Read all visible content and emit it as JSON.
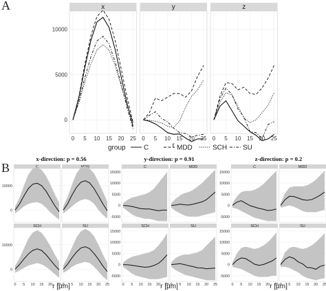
{
  "panel_a_label": "A",
  "panel_b_label": "B",
  "chart_data": [
    {
      "type": "line",
      "facets": [
        "x",
        "y",
        "z"
      ],
      "xlabel": "r",
      "ylabel": "",
      "x_ticks": [
        0,
        5,
        10,
        15,
        20,
        25
      ],
      "y_ticks": [
        0,
        5000,
        10000
      ],
      "xlim": [
        0,
        25
      ],
      "ylim": [
        -1500,
        12000
      ],
      "legend_title": "group",
      "legend_position": "bottom",
      "grid": true,
      "series_names": [
        "C",
        "MDD",
        "SCH",
        "SU"
      ],
      "x": [
        0,
        2.5,
        5,
        7.5,
        10,
        12.5,
        15,
        17.5,
        20,
        22.5,
        25
      ],
      "panels": {
        "x": {
          "C": [
            0,
            2500,
            5800,
            8800,
            10800,
            11300,
            10200,
            7800,
            4800,
            1800,
            -700
          ],
          "MDD": [
            0,
            2600,
            6200,
            9300,
            11400,
            12100,
            11100,
            8800,
            5700,
            2500,
            -300
          ],
          "SCH": [
            0,
            1900,
            4200,
            6200,
            7700,
            8300,
            7700,
            6000,
            3800,
            1600,
            -300
          ],
          "SU": [
            0,
            2100,
            4700,
            7000,
            8700,
            9200,
            8400,
            6400,
            4000,
            1300,
            -1000
          ]
        },
        "y": {
          "C": [
            0,
            -150,
            -450,
            -900,
            -1400,
            -1600,
            -1550,
            -2000,
            -2400,
            -2100,
            -2100
          ],
          "MDD": [
            0,
            800,
            2400,
            2100,
            2500,
            2900,
            2900,
            2500,
            3200,
            4800,
            6000
          ],
          "SCH": [
            0,
            -50,
            -150,
            -350,
            -700,
            -850,
            -150,
            1400,
            2600,
            3300,
            4400
          ],
          "SU": [
            0,
            500,
            900,
            150,
            -200,
            -900,
            -1400,
            -1500,
            -1900,
            -1700,
            -1600
          ]
        },
        "z": {
          "C": [
            0,
            1500,
            2100,
            1000,
            -100,
            -700,
            -1300,
            -1700,
            -2300,
            -2100,
            -1600
          ],
          "MDD": [
            0,
            2600,
            4100,
            4000,
            3300,
            3600,
            2900,
            2800,
            3500,
            4600,
            6000
          ],
          "SCH": [
            0,
            1900,
            3000,
            2700,
            1500,
            200,
            -300,
            0,
            800,
            1600,
            3000
          ],
          "SU": [
            0,
            2300,
            3500,
            2800,
            1200,
            300,
            -1300,
            -1400,
            -2100,
            -500,
            -200
          ]
        }
      }
    },
    {
      "type": "area",
      "xlabel": "r [μm]",
      "x_ticks": [
        0,
        5,
        10,
        15,
        20,
        25
      ],
      "xlim": [
        0,
        25
      ],
      "x": [
        0,
        2.5,
        5,
        7.5,
        10,
        12.5,
        15,
        17.5,
        20,
        22.5,
        25
      ],
      "groups_order": [
        "C",
        "MDD",
        "SCH",
        "SU"
      ],
      "directions": [
        {
          "title": "x-direction: p = 0.56",
          "y_ticks": [
            0,
            10000
          ],
          "ylim": [
            -5000,
            17000
          ],
          "groups": {
            "C": {
              "mean": [
                0,
                2500,
                5800,
                8800,
                10600,
                11000,
                10000,
                7800,
                4800,
                1800,
                -700
              ],
              "low": [
                -1500,
                0,
                1500,
                2500,
                3000,
                3200,
                2500,
                1000,
                -1000,
                -2500,
                -4000
              ],
              "high": [
                1500,
                5000,
                10000,
                14500,
                17000,
                17500,
                16500,
                14000,
                10500,
                6500,
                3000
              ]
            },
            "MDD": {
              "mean": [
                0,
                2600,
                6200,
                9300,
                11400,
                12000,
                11100,
                8800,
                5700,
                2500,
                -300
              ],
              "low": [
                -1500,
                0,
                1500,
                3000,
                4000,
                4500,
                4000,
                2500,
                0,
                -2000,
                -3500
              ],
              "high": [
                1500,
                5500,
                10500,
                15000,
                17500,
                18000,
                17000,
                15000,
                11500,
                7500,
                3500
              ]
            },
            "SCH": {
              "mean": [
                0,
                1900,
                4200,
                6200,
                7700,
                8300,
                7700,
                6000,
                3800,
                1600,
                -300
              ],
              "low": [
                -1500,
                -500,
                500,
                1500,
                2000,
                2500,
                2000,
                1000,
                -500,
                -2000,
                -3500
              ],
              "high": [
                1500,
                4500,
                8500,
                12500,
                15000,
                16000,
                15000,
                12500,
                9500,
                6000,
                3000
              ]
            },
            "SU": {
              "mean": [
                0,
                2100,
                4700,
                7000,
                8700,
                9200,
                8400,
                6400,
                4000,
                1300,
                -1000
              ],
              "low": [
                -1500,
                -500,
                1000,
                2000,
                2500,
                3000,
                2500,
                1000,
                -1000,
                -3000,
                -4500
              ],
              "high": [
                1500,
                5000,
                9000,
                13000,
                15500,
                16500,
                15500,
                13500,
                10000,
                6000,
                2500
              ]
            }
          }
        },
        {
          "title": "y-direction: p = 0.91",
          "y_ticks": [
            -5000,
            0,
            5000,
            10000,
            15000
          ],
          "ylim": [
            -7500,
            16500
          ],
          "groups": {
            "C": {
              "mean": [
                0,
                -150,
                -450,
                -900,
                -1400,
                -1600,
                -1550,
                -2000,
                -2400,
                -2100,
                -2100
              ],
              "low": [
                -1000,
                -2500,
                -4000,
                -5000,
                -5500,
                -6000,
                -6000,
                -6500,
                -7000,
                -7000,
                -7000
              ],
              "high": [
                1000,
                2500,
                3500,
                4000,
                4500,
                5000,
                6000,
                7500,
                10000,
                12500,
                15000
              ]
            },
            "MDD": {
              "mean": [
                0,
                200,
                600,
                300,
                200,
                600,
                1100,
                1600,
                2600,
                4300,
                6000
              ],
              "low": [
                -1000,
                -2500,
                -3500,
                -4500,
                -5000,
                -5000,
                -5000,
                -4500,
                -4000,
                -3500,
                -3000
              ],
              "high": [
                1000,
                3000,
                4500,
                5500,
                6000,
                7000,
                8500,
                10000,
                12000,
                14000,
                16000
              ]
            },
            "SCH": {
              "mean": [
                0,
                -100,
                -300,
                -600,
                -900,
                -1200,
                -1000,
                -400,
                500,
                2200,
                4400
              ],
              "low": [
                -1000,
                -2500,
                -4000,
                -5000,
                -5500,
                -6000,
                -6500,
                -6500,
                -6500,
                -6000,
                -5500
              ],
              "high": [
                1000,
                2500,
                3500,
                4000,
                4500,
                5000,
                5500,
                6500,
                8500,
                11000,
                14000
              ]
            },
            "SU": {
              "mean": [
                0,
                200,
                400,
                0,
                -500,
                -900,
                -1400,
                -1500,
                -1900,
                -1700,
                -1600
              ],
              "low": [
                -1000,
                -2500,
                -3500,
                -4500,
                -5000,
                -5500,
                -6000,
                -6500,
                -7000,
                -7000,
                -7000
              ],
              "high": [
                1000,
                3000,
                4000,
                4500,
                4500,
                5000,
                5500,
                6500,
                8500,
                10500,
                12500
              ]
            }
          }
        },
        {
          "title": "z-direction: p = 0.2",
          "y_ticks": [
            -5000,
            0,
            5000,
            10000,
            15000
          ],
          "ylim": [
            -7500,
            16500
          ],
          "groups": {
            "C": {
              "mean": [
                0,
                1500,
                2100,
                1000,
                -100,
                -700,
                -1300,
                -1700,
                -2300,
                -2100,
                -1600
              ],
              "low": [
                -1000,
                -1500,
                -2500,
                -3500,
                -4500,
                -5500,
                -6000,
                -6500,
                -7000,
                -7000,
                -7000
              ],
              "high": [
                1000,
                4000,
                6000,
                6500,
                6500,
                7000,
                8000,
                9500,
                11500,
                13500,
                15500
              ]
            },
            "MDD": {
              "mean": [
                0,
                2600,
                4100,
                4000,
                3300,
                2600,
                2300,
                2600,
                3500,
                4600,
                6000
              ],
              "low": [
                -1000,
                -500,
                0,
                -500,
                -1500,
                -2500,
                -3000,
                -3000,
                -3000,
                -2500,
                -2000
              ],
              "high": [
                1000,
                5500,
                8000,
                8500,
                8500,
                8500,
                9000,
                10000,
                11500,
                13500,
                15500
              ]
            },
            "SCH": {
              "mean": [
                0,
                1900,
                3000,
                2700,
                1500,
                200,
                -300,
                0,
                800,
                1600,
                3000
              ],
              "low": [
                -1000,
                -1500,
                -2000,
                -3000,
                -4000,
                -5000,
                -5500,
                -5500,
                -5500,
                -5000,
                -5000
              ],
              "high": [
                1000,
                5000,
                7500,
                8000,
                7500,
                7000,
                7500,
                8500,
                10000,
                12000,
                14500
              ]
            },
            "SU": {
              "mean": [
                0,
                2300,
                3500,
                2800,
                1200,
                300,
                -1300,
                -1400,
                -2100,
                -800,
                -200
              ],
              "low": [
                -1000,
                -1000,
                -1500,
                -2500,
                -3500,
                -5000,
                -6000,
                -6500,
                -7000,
                -6500,
                -6000
              ],
              "high": [
                1000,
                5500,
                7500,
                8000,
                7500,
                7000,
                7500,
                8500,
                10000,
                12000,
                14000
              ]
            }
          }
        }
      ]
    }
  ]
}
